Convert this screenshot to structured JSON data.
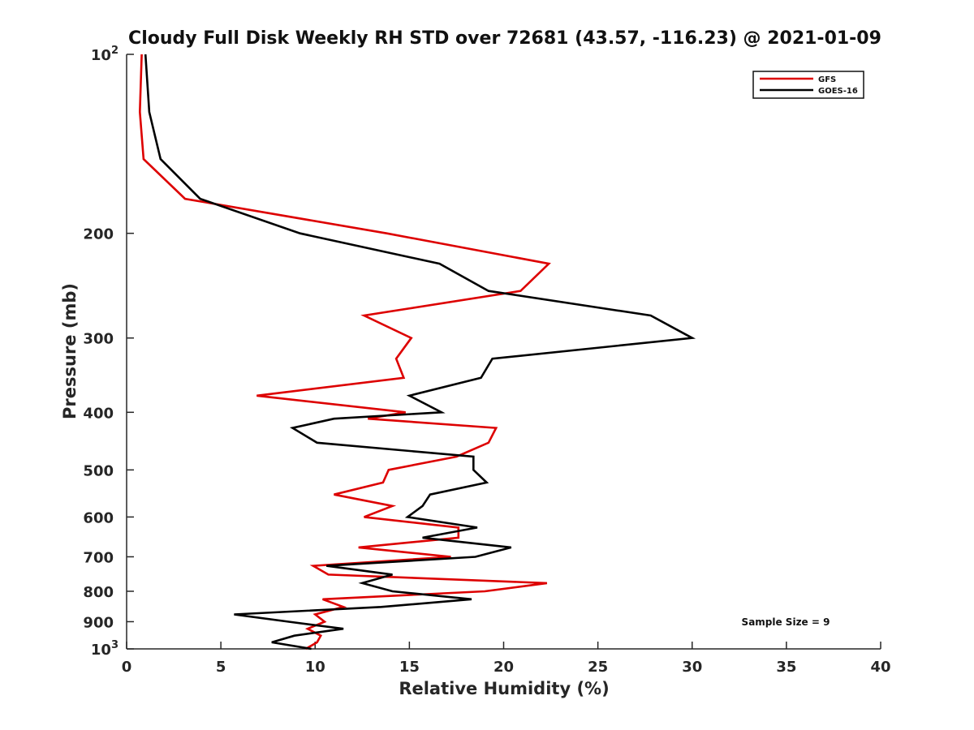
{
  "chart_data": {
    "type": "line",
    "title": "Cloudy Full Disk Weekly RH STD over 72681 (43.57, -116.23) @ 2021-01-09",
    "xlabel": "Relative Humidity (%)",
    "ylabel": "Pressure (mb)",
    "xlim": [
      0,
      40
    ],
    "ylim": [
      100,
      1000
    ],
    "y_scale": "log",
    "y_reversed": true,
    "grid": false,
    "legend_position": "top-right",
    "x_ticks": [
      "0",
      "5",
      "10",
      "15",
      "20",
      "25",
      "30",
      "35",
      "40"
    ],
    "y_ticks": [
      {
        "value": 100,
        "base": "10",
        "exp": "2"
      },
      {
        "value": 200,
        "label": "200"
      },
      {
        "value": 300,
        "label": "300"
      },
      {
        "value": 400,
        "label": "400"
      },
      {
        "value": 500,
        "label": "500"
      },
      {
        "value": 600,
        "label": "600"
      },
      {
        "value": 700,
        "label": "700"
      },
      {
        "value": 800,
        "label": "800"
      },
      {
        "value": 900,
        "label": "900"
      },
      {
        "value": 1000,
        "base": "10",
        "exp": "3"
      }
    ],
    "series": [
      {
        "name": "GFS",
        "color": "#dd0000",
        "points": [
          {
            "p": 100,
            "rh": 0.8
          },
          {
            "p": 125,
            "rh": 0.7
          },
          {
            "p": 150,
            "rh": 0.9
          },
          {
            "p": 175,
            "rh": 3.1
          },
          {
            "p": 200,
            "rh": 13.8
          },
          {
            "p": 225,
            "rh": 22.4
          },
          {
            "p": 250,
            "rh": 20.9
          },
          {
            "p": 275,
            "rh": 12.6
          },
          {
            "p": 300,
            "rh": 15.1
          },
          {
            "p": 325,
            "rh": 14.3
          },
          {
            "p": 350,
            "rh": 14.7
          },
          {
            "p": 375,
            "rh": 6.9
          },
          {
            "p": 400,
            "rh": 14.8
          },
          {
            "p": 410,
            "rh": 12.8
          },
          {
            "p": 425,
            "rh": 19.6
          },
          {
            "p": 450,
            "rh": 19.2
          },
          {
            "p": 475,
            "rh": 17.5
          },
          {
            "p": 500,
            "rh": 13.9
          },
          {
            "p": 525,
            "rh": 13.6
          },
          {
            "p": 550,
            "rh": 11.0
          },
          {
            "p": 575,
            "rh": 14.1
          },
          {
            "p": 600,
            "rh": 12.6
          },
          {
            "p": 625,
            "rh": 17.6
          },
          {
            "p": 650,
            "rh": 17.6
          },
          {
            "p": 675,
            "rh": 12.3
          },
          {
            "p": 700,
            "rh": 17.2
          },
          {
            "p": 725,
            "rh": 9.9
          },
          {
            "p": 750,
            "rh": 10.7
          },
          {
            "p": 775,
            "rh": 22.3
          },
          {
            "p": 800,
            "rh": 19.0
          },
          {
            "p": 825,
            "rh": 10.4
          },
          {
            "p": 850,
            "rh": 11.5
          },
          {
            "p": 875,
            "rh": 10.0
          },
          {
            "p": 900,
            "rh": 10.5
          },
          {
            "p": 925,
            "rh": 9.6
          },
          {
            "p": 950,
            "rh": 10.3
          },
          {
            "p": 975,
            "rh": 10.1
          },
          {
            "p": 1000,
            "rh": 9.5
          }
        ]
      },
      {
        "name": "GOES-16",
        "color": "#000000",
        "points": [
          {
            "p": 100,
            "rh": 1.0
          },
          {
            "p": 125,
            "rh": 1.2
          },
          {
            "p": 150,
            "rh": 1.8
          },
          {
            "p": 175,
            "rh": 3.9
          },
          {
            "p": 200,
            "rh": 9.2
          },
          {
            "p": 225,
            "rh": 16.6
          },
          {
            "p": 250,
            "rh": 19.2
          },
          {
            "p": 275,
            "rh": 27.8
          },
          {
            "p": 300,
            "rh": 30.0
          },
          {
            "p": 325,
            "rh": 19.4
          },
          {
            "p": 350,
            "rh": 18.8
          },
          {
            "p": 375,
            "rh": 15.0
          },
          {
            "p": 400,
            "rh": 16.7
          },
          {
            "p": 410,
            "rh": 11.0
          },
          {
            "p": 425,
            "rh": 8.8
          },
          {
            "p": 450,
            "rh": 10.1
          },
          {
            "p": 475,
            "rh": 18.4
          },
          {
            "p": 500,
            "rh": 18.4
          },
          {
            "p": 525,
            "rh": 19.1
          },
          {
            "p": 550,
            "rh": 16.1
          },
          {
            "p": 575,
            "rh": 15.7
          },
          {
            "p": 600,
            "rh": 14.9
          },
          {
            "p": 625,
            "rh": 18.6
          },
          {
            "p": 650,
            "rh": 15.7
          },
          {
            "p": 675,
            "rh": 20.4
          },
          {
            "p": 700,
            "rh": 18.5
          },
          {
            "p": 725,
            "rh": 10.6
          },
          {
            "p": 750,
            "rh": 14.1
          },
          {
            "p": 775,
            "rh": 12.5
          },
          {
            "p": 800,
            "rh": 14.1
          },
          {
            "p": 825,
            "rh": 18.3
          },
          {
            "p": 850,
            "rh": 13.5
          },
          {
            "p": 875,
            "rh": 5.7
          },
          {
            "p": 900,
            "rh": 8.6
          },
          {
            "p": 925,
            "rh": 11.5
          },
          {
            "p": 950,
            "rh": 8.9
          },
          {
            "p": 975,
            "rh": 7.7
          },
          {
            "p": 1000,
            "rh": 9.8
          }
        ]
      }
    ],
    "annotations": [
      {
        "text": "Sample Size = 9",
        "position": "bottom-right"
      }
    ]
  }
}
